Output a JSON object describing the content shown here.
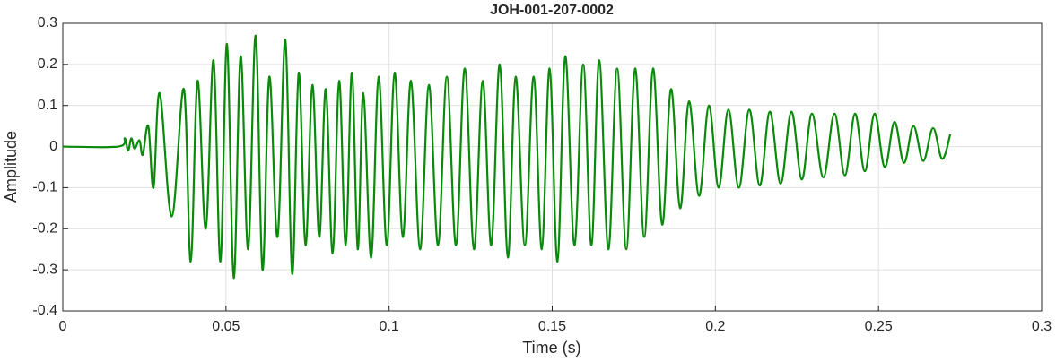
{
  "chart_data": {
    "type": "line",
    "title": "JOH-001-207-0002",
    "xlabel": "Time (s)",
    "ylabel": "Amplitude",
    "x": [
      0,
      0.017,
      0.019,
      0.02,
      0.021,
      0.022,
      0.0235,
      0.0245,
      0.0262,
      0.0278,
      0.0297,
      0.0334,
      0.0371,
      0.0392,
      0.0413,
      0.0438,
      0.0462,
      0.0483,
      0.0503,
      0.0524,
      0.0545,
      0.0568,
      0.0591,
      0.0612,
      0.0633,
      0.0658,
      0.0682,
      0.0703,
      0.0723,
      0.0744,
      0.0765,
      0.0786,
      0.0806,
      0.0827,
      0.0847,
      0.0867,
      0.0886,
      0.0904,
      0.0921,
      0.0945,
      0.0968,
      0.0993,
      0.1017,
      0.1042,
      0.1067,
      0.1095,
      0.1122,
      0.115,
      0.1177,
      0.1205,
      0.1232,
      0.126,
      0.1287,
      0.1313,
      0.1339,
      0.1364,
      0.1388,
      0.1416,
      0.1443,
      0.1468,
      0.1492,
      0.1516,
      0.154,
      0.1568,
      0.1595,
      0.162,
      0.1644,
      0.1672,
      0.1699,
      0.1727,
      0.1754,
      0.1782,
      0.1809,
      0.1837,
      0.1864,
      0.1892,
      0.1919,
      0.195,
      0.198,
      0.201,
      0.204,
      0.2072,
      0.2104,
      0.2136,
      0.2167,
      0.22,
      0.2233,
      0.2265,
      0.2296,
      0.2331,
      0.2365,
      0.2397,
      0.2428,
      0.2458,
      0.2488,
      0.2519,
      0.2549,
      0.2578,
      0.2607,
      0.2637,
      0.2667,
      0.2695,
      0.272
    ],
    "series": [
      {
        "name": "Amplitude",
        "color": "#0a8a0a",
        "values": [
          0,
          0,
          0.02,
          -0.01,
          0.02,
          -0.005,
          0.015,
          -0.02,
          0.05,
          -0.1,
          0.13,
          -0.17,
          0.14,
          -0.28,
          0.16,
          -0.2,
          0.21,
          -0.28,
          0.25,
          -0.32,
          0.22,
          -0.25,
          0.27,
          -0.3,
          0.17,
          -0.22,
          0.26,
          -0.31,
          0.18,
          -0.24,
          0.15,
          -0.22,
          0.14,
          -0.26,
          0.16,
          -0.24,
          0.18,
          -0.25,
          0.13,
          -0.27,
          0.17,
          -0.24,
          0.18,
          -0.22,
          0.16,
          -0.25,
          0.15,
          -0.24,
          0.17,
          -0.24,
          0.19,
          -0.25,
          0.16,
          -0.24,
          0.2,
          -0.27,
          0.17,
          -0.24,
          0.17,
          -0.25,
          0.19,
          -0.28,
          0.22,
          -0.24,
          0.2,
          -0.24,
          0.21,
          -0.25,
          0.19,
          -0.25,
          0.19,
          -0.22,
          0.19,
          -0.19,
          0.14,
          -0.15,
          0.11,
          -0.12,
          0.1,
          -0.1,
          0.09,
          -0.1,
          0.09,
          -0.095,
          0.085,
          -0.09,
          0.085,
          -0.08,
          0.08,
          -0.075,
          0.08,
          -0.07,
          0.08,
          -0.06,
          0.08,
          -0.05,
          0.06,
          -0.04,
          0.05,
          -0.035,
          0.045,
          -0.03,
          0.03
        ]
      }
    ],
    "xlim": [
      0,
      0.3
    ],
    "xticks": [
      0,
      0.05,
      0.1,
      0.15,
      0.2,
      0.25,
      0.3
    ],
    "ylim": [
      -0.4,
      0.3
    ],
    "yticks": [
      -0.4,
      -0.3,
      -0.2,
      -0.1,
      0,
      0.1,
      0.2,
      0.3
    ],
    "grid": true
  }
}
